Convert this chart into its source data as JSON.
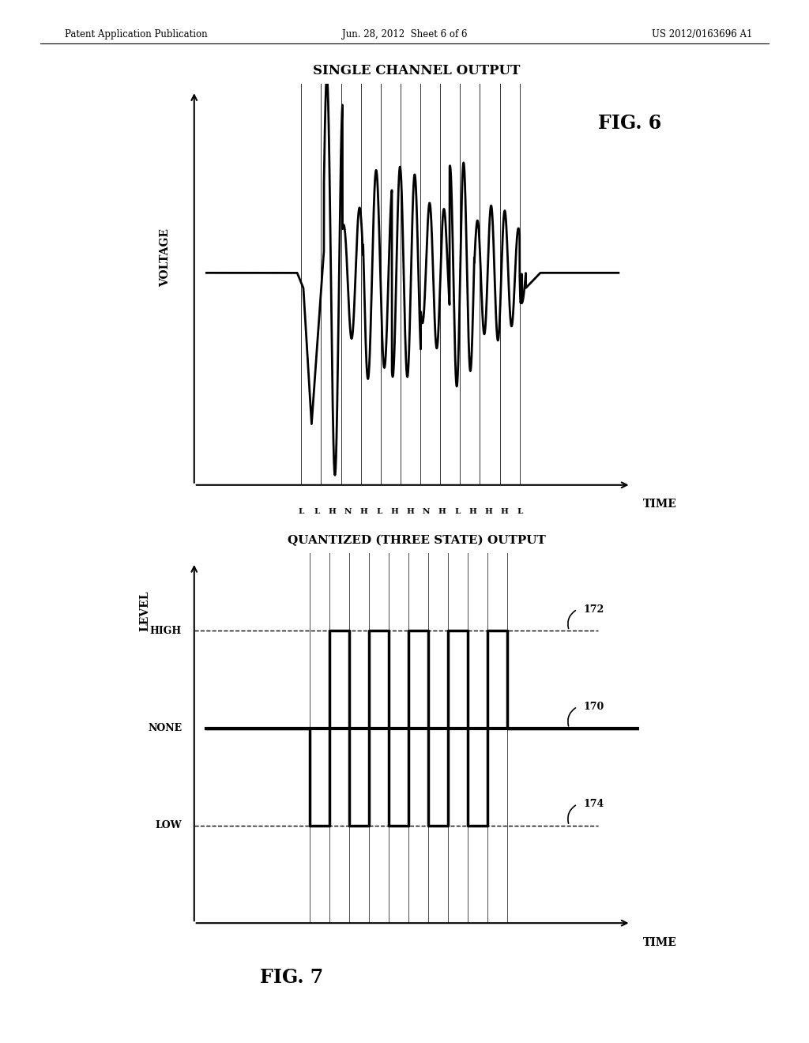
{
  "bg_color": "#ffffff",
  "header_left": "Patent Application Publication",
  "header_center": "Jun. 28, 2012  Sheet 6 of 6",
  "header_right": "US 2012/0163696 A1",
  "fig6_title": "SINGLE CHANNEL OUTPUT",
  "fig6_label": "FIG. 6",
  "fig6_ylabel": "VOLTAGE",
  "fig6_xlabel": "TIME",
  "fig6_x_labels": [
    "L",
    "L",
    "H",
    "N",
    "H",
    "L",
    "H",
    "H",
    "N",
    "H",
    "L",
    "H",
    "H",
    "H",
    "L"
  ],
  "fig7_title": "QUANTIZED (THREE STATE) OUTPUT",
  "fig7_label": "FIG. 7",
  "fig7_ylabel": "LEVEL",
  "fig7_xlabel": "TIME",
  "fig7_ytick_labels": [
    "HIGH",
    "NONE",
    "LOW"
  ],
  "ref_172": "172",
  "ref_170": "170",
  "ref_174": "174"
}
